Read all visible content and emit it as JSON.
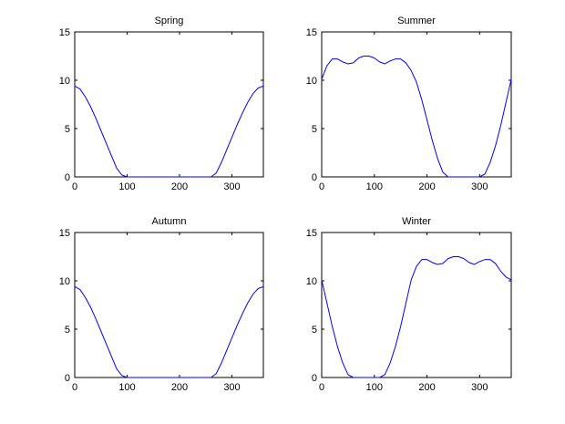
{
  "colors": {
    "line": "#0000ff",
    "axis": "#000000",
    "background": "#ffffff"
  },
  "chart_data": [
    {
      "type": "line",
      "title": "Spring",
      "xlabel": "",
      "ylabel": "",
      "xlim": [
        0,
        360
      ],
      "ylim": [
        0,
        15
      ],
      "xticks": [
        0,
        100,
        200,
        300
      ],
      "yticks": [
        0,
        5,
        10,
        15
      ],
      "grid": false,
      "series": [
        {
          "x": [
            0,
            10,
            20,
            30,
            40,
            50,
            60,
            70,
            80,
            90,
            100,
            110,
            120,
            130,
            140,
            150,
            160,
            170,
            180,
            190,
            200,
            210,
            220,
            230,
            240,
            250,
            260,
            270,
            280,
            290,
            300,
            310,
            320,
            330,
            340,
            350,
            360
          ],
          "y": [
            9.4,
            9.1,
            8.3,
            7.3,
            6.1,
            4.8,
            3.5,
            2.2,
            0.9,
            0.2,
            0,
            0,
            0,
            0,
            0,
            0,
            0,
            0,
            0,
            0,
            0,
            0,
            0,
            0,
            0,
            0,
            0,
            0.4,
            1.5,
            2.8,
            4.1,
            5.4,
            6.6,
            7.7,
            8.6,
            9.2,
            9.4
          ]
        }
      ]
    },
    {
      "type": "line",
      "title": "Summer",
      "xlabel": "",
      "ylabel": "",
      "xlim": [
        0,
        360
      ],
      "ylim": [
        0,
        15
      ],
      "xticks": [
        0,
        100,
        200,
        300
      ],
      "yticks": [
        0,
        5,
        10,
        15
      ],
      "grid": false,
      "series": [
        {
          "x": [
            0,
            10,
            20,
            30,
            40,
            50,
            60,
            70,
            80,
            90,
            100,
            110,
            120,
            130,
            140,
            150,
            160,
            170,
            180,
            190,
            200,
            210,
            220,
            230,
            240,
            250,
            260,
            270,
            280,
            290,
            300,
            310,
            320,
            330,
            340,
            350,
            360
          ],
          "y": [
            10.1,
            11.5,
            12.2,
            12.2,
            11.9,
            11.7,
            11.8,
            12.3,
            12.5,
            12.5,
            12.3,
            11.9,
            11.7,
            12.0,
            12.2,
            12.2,
            11.8,
            11.0,
            9.8,
            8.0,
            5.9,
            3.8,
            1.9,
            0.5,
            0,
            0,
            0,
            0,
            0,
            0,
            0,
            0.3,
            1.5,
            3.2,
            5.3,
            7.7,
            10.1
          ]
        }
      ]
    },
    {
      "type": "line",
      "title": "Autumn",
      "xlabel": "",
      "ylabel": "",
      "xlim": [
        0,
        360
      ],
      "ylim": [
        0,
        15
      ],
      "xticks": [
        0,
        100,
        200,
        300
      ],
      "yticks": [
        0,
        5,
        10,
        15
      ],
      "grid": false,
      "series": [
        {
          "x": [
            0,
            10,
            20,
            30,
            40,
            50,
            60,
            70,
            80,
            90,
            100,
            110,
            120,
            130,
            140,
            150,
            160,
            170,
            180,
            190,
            200,
            210,
            220,
            230,
            240,
            250,
            260,
            270,
            280,
            290,
            300,
            310,
            320,
            330,
            340,
            350,
            360
          ],
          "y": [
            9.4,
            9.1,
            8.3,
            7.3,
            6.1,
            4.8,
            3.5,
            2.2,
            0.9,
            0.2,
            0,
            0,
            0,
            0,
            0,
            0,
            0,
            0,
            0,
            0,
            0,
            0,
            0,
            0,
            0,
            0,
            0,
            0.4,
            1.5,
            2.8,
            4.1,
            5.4,
            6.6,
            7.7,
            8.6,
            9.2,
            9.4
          ]
        }
      ]
    },
    {
      "type": "line",
      "title": "Winter",
      "xlabel": "",
      "ylabel": "",
      "xlim": [
        0,
        360
      ],
      "ylim": [
        0,
        15
      ],
      "xticks": [
        0,
        100,
        200,
        300
      ],
      "yticks": [
        0,
        5,
        10,
        15
      ],
      "grid": false,
      "series": [
        {
          "x": [
            0,
            10,
            20,
            30,
            40,
            50,
            60,
            70,
            80,
            90,
            100,
            110,
            120,
            130,
            140,
            150,
            160,
            170,
            180,
            190,
            200,
            210,
            220,
            230,
            240,
            250,
            260,
            270,
            280,
            290,
            300,
            310,
            320,
            330,
            340,
            350,
            360
          ],
          "y": [
            10.1,
            7.7,
            5.3,
            3.2,
            1.5,
            0.3,
            0,
            0,
            0,
            0,
            0,
            0,
            0.3,
            1.5,
            3.2,
            5.3,
            7.7,
            10.1,
            11.5,
            12.2,
            12.2,
            11.9,
            11.7,
            11.8,
            12.3,
            12.5,
            12.5,
            12.3,
            11.9,
            11.7,
            12.0,
            12.2,
            12.2,
            11.8,
            11.0,
            10.4,
            10.1
          ]
        }
      ]
    }
  ]
}
